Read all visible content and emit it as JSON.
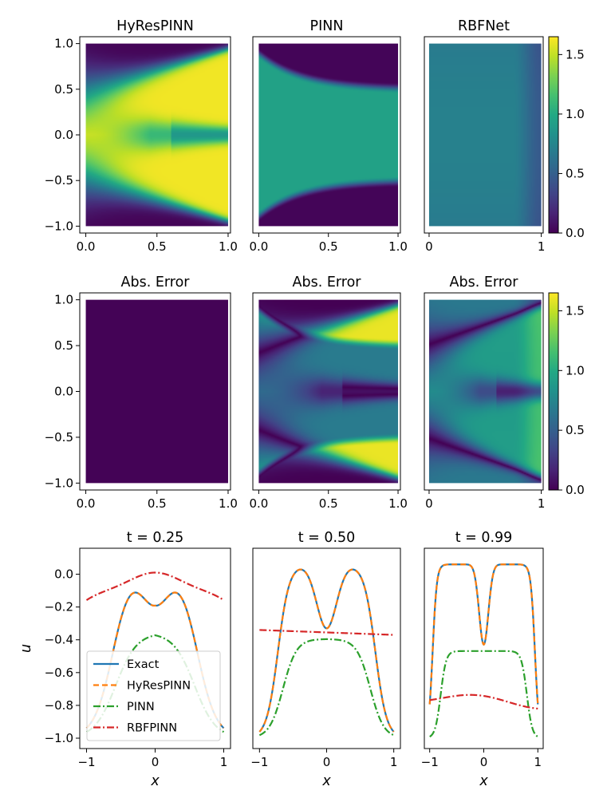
{
  "chart_data": [
    {
      "id": "hm-hyrespinn",
      "type": "heatmap",
      "title": "HyResPINN",
      "field": "hyres",
      "xlim": [
        0,
        1
      ],
      "ylim": [
        -1,
        1
      ],
      "xticks": [
        {
          "v": 0,
          "label": "0.0"
        },
        {
          "v": 0.5,
          "label": "0.5"
        },
        {
          "v": 1,
          "label": "1.0"
        }
      ],
      "yticks": [
        {
          "v": 1,
          "label": "1.0"
        },
        {
          "v": 0.5,
          "label": "0.5"
        },
        {
          "v": 0,
          "label": "0.0"
        },
        {
          "v": -0.5,
          "label": "−0.5"
        },
        {
          "v": -1,
          "label": "−1.0"
        }
      ]
    },
    {
      "id": "hm-pinn",
      "type": "heatmap",
      "title": "PINN",
      "field": "pinn",
      "xlim": [
        0,
        1
      ],
      "ylim": [
        -1,
        1
      ],
      "xticks": [
        {
          "v": 0,
          "label": "0.0"
        },
        {
          "v": 0.5,
          "label": "0.5"
        },
        {
          "v": 1,
          "label": "1.0"
        }
      ],
      "yticks": []
    },
    {
      "id": "hm-rbfnet",
      "type": "heatmap",
      "title": "RBFNet",
      "field": "rbf",
      "xlim": [
        0,
        1
      ],
      "ylim": [
        -1,
        1
      ],
      "xticks": [
        {
          "v": 0,
          "label": "0"
        },
        {
          "v": 1,
          "label": "1"
        }
      ],
      "yticks": []
    },
    {
      "id": "err-hyrespinn",
      "type": "heatmap",
      "title": "Abs. Error",
      "field": "err_hyres",
      "xlim": [
        0,
        1
      ],
      "ylim": [
        -1,
        1
      ],
      "xticks": [
        {
          "v": 0,
          "label": "0.0"
        },
        {
          "v": 0.5,
          "label": "0.5"
        },
        {
          "v": 1,
          "label": "1.0"
        }
      ],
      "yticks": [
        {
          "v": 1,
          "label": "1.0"
        },
        {
          "v": 0.5,
          "label": "0.5"
        },
        {
          "v": 0,
          "label": "0.0"
        },
        {
          "v": -0.5,
          "label": "−0.5"
        },
        {
          "v": -1,
          "label": "−1.0"
        }
      ]
    },
    {
      "id": "err-pinn",
      "type": "heatmap",
      "title": "Abs. Error",
      "field": "err_pinn",
      "xlim": [
        0,
        1
      ],
      "ylim": [
        -1,
        1
      ],
      "xticks": [
        {
          "v": 0,
          "label": "0.0"
        },
        {
          "v": 0.5,
          "label": "0.5"
        },
        {
          "v": 1,
          "label": "1.0"
        }
      ],
      "yticks": []
    },
    {
      "id": "err-rbfnet",
      "type": "heatmap",
      "title": "Abs. Error",
      "field": "err_rbf",
      "xlim": [
        0,
        1
      ],
      "ylim": [
        -1,
        1
      ],
      "xticks": [
        {
          "v": 0,
          "label": "0"
        },
        {
          "v": 1,
          "label": "1"
        }
      ],
      "yticks": []
    },
    {
      "id": "slice-t025",
      "type": "line",
      "title": "t = 0.25",
      "t": 0.25,
      "xlim": [
        -1,
        1
      ],
      "ylim": [
        -1,
        0.1
      ],
      "xlabel": "x",
      "ylabel": "u",
      "xticks": [
        {
          "v": -1,
          "label": "−1"
        },
        {
          "v": 0,
          "label": "0"
        },
        {
          "v": 1,
          "label": "1"
        }
      ],
      "yticks": [
        {
          "v": 0,
          "label": "0.0"
        },
        {
          "v": -0.2,
          "label": "−0.2"
        },
        {
          "v": -0.4,
          "label": "−0.4"
        },
        {
          "v": -0.6,
          "label": "−0.6"
        },
        {
          "v": -0.8,
          "label": "−0.8"
        },
        {
          "v": -1,
          "label": "−1.0"
        }
      ],
      "legend": "lower-left",
      "series": [
        {
          "name": "Exact",
          "key": "exact",
          "color": "#1f77b4",
          "dash": "none"
        },
        {
          "name": "HyResPINN",
          "key": "hyres",
          "color": "#ff7f0e",
          "dash": "7,4"
        },
        {
          "name": "PINN",
          "key": "pinn",
          "color": "#2ca02c",
          "dash": "9,3,2,3"
        },
        {
          "name": "RBFPINN",
          "key": "rbf",
          "color": "#d62728",
          "dash": "9,3,2,3"
        }
      ]
    },
    {
      "id": "slice-t050",
      "type": "line",
      "title": "t = 0.50",
      "t": 0.5,
      "xlim": [
        -1,
        1
      ],
      "ylim": [
        -1,
        0.1
      ],
      "xlabel": "x",
      "xticks": [
        {
          "v": -1,
          "label": "−1"
        },
        {
          "v": 0,
          "label": "0"
        },
        {
          "v": 1,
          "label": "1"
        }
      ],
      "yticks": [],
      "series": [
        {
          "key": "exact",
          "color": "#1f77b4",
          "dash": "none"
        },
        {
          "key": "hyres",
          "color": "#ff7f0e",
          "dash": "7,4"
        },
        {
          "key": "pinn",
          "color": "#2ca02c",
          "dash": "9,3,2,3"
        },
        {
          "key": "rbf",
          "color": "#d62728",
          "dash": "9,3,2,3"
        }
      ]
    },
    {
      "id": "slice-t099",
      "type": "line",
      "title": "t = 0.99",
      "t": 0.99,
      "xlim": [
        -1,
        1
      ],
      "ylim": [
        -1,
        0.1
      ],
      "xlabel": "x",
      "xticks": [
        {
          "v": -1,
          "label": "−1"
        },
        {
          "v": 0,
          "label": "0"
        },
        {
          "v": 1,
          "label": "1"
        }
      ],
      "yticks": [],
      "series": [
        {
          "key": "exact",
          "color": "#1f77b4",
          "dash": "none"
        },
        {
          "key": "hyres",
          "color": "#ff7f0e",
          "dash": "7,4"
        },
        {
          "key": "pinn",
          "color": "#2ca02c",
          "dash": "9,3,2,3"
        },
        {
          "key": "rbf",
          "color": "#d62728",
          "dash": "9,3,2,3"
        }
      ]
    }
  ],
  "colorbars": [
    {
      "id": "cbar-top",
      "colormap": "viridis",
      "vmin": 0,
      "vmax": 1.65,
      "ticks": [
        {
          "v": 1.5,
          "label": "1.5"
        },
        {
          "v": 1.0,
          "label": "1.0"
        },
        {
          "v": 0.5,
          "label": "0.5"
        },
        {
          "v": 0,
          "label": "0.0"
        }
      ]
    },
    {
      "id": "cbar-mid",
      "colormap": "viridis",
      "vmin": 0,
      "vmax": 1.65,
      "ticks": [
        {
          "v": 1.5,
          "label": "1.5"
        },
        {
          "v": 1.0,
          "label": "1.0"
        },
        {
          "v": 0.5,
          "label": "0.5"
        },
        {
          "v": 0,
          "label": "0.0"
        }
      ]
    }
  ]
}
